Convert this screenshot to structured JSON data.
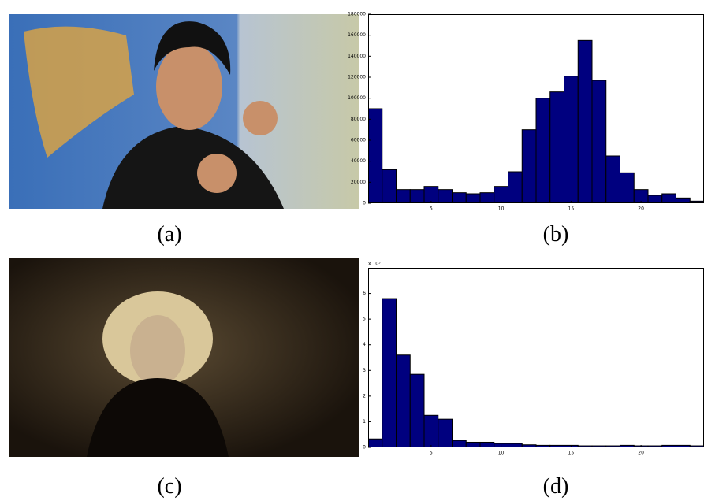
{
  "images": [
    {
      "caption": "(a)"
    },
    {
      "caption": "(c)"
    }
  ],
  "chart_data": [
    {
      "type": "bar",
      "caption": "(b)",
      "x": [
        1,
        2,
        3,
        4,
        5,
        6,
        7,
        8,
        9,
        10,
        11,
        12,
        13,
        14,
        15,
        16,
        17,
        18,
        19,
        20,
        21,
        22,
        23,
        24
      ],
      "values": [
        90000,
        32000,
        13000,
        13000,
        16000,
        13000,
        10000,
        9000,
        10000,
        16000,
        30000,
        70000,
        100000,
        106000,
        121000,
        155000,
        117000,
        45000,
        29000,
        13000,
        7500,
        9000,
        5000,
        2000
      ],
      "color": "#00007f",
      "xlim": [
        0.5,
        24.5
      ],
      "xticks": [
        5,
        10,
        15,
        20
      ],
      "ylim": [
        0,
        180000
      ],
      "yticks": [
        0,
        20000,
        40000,
        60000,
        80000,
        100000,
        120000,
        140000,
        160000,
        180000
      ]
    },
    {
      "type": "bar",
      "caption": "(d)",
      "y_multiplier": "x 10⁵",
      "x": [
        1,
        2,
        3,
        4,
        5,
        6,
        7,
        8,
        9,
        10,
        11,
        12,
        13,
        14,
        15,
        16,
        17,
        18,
        19,
        20,
        21,
        22,
        23,
        24
      ],
      "values": [
        0.33,
        5.8,
        3.6,
        2.85,
        1.25,
        1.1,
        0.27,
        0.2,
        0.2,
        0.15,
        0.15,
        0.1,
        0.08,
        0.08,
        0.08,
        0.06,
        0.06,
        0.06,
        0.08,
        0.06,
        0.06,
        0.08,
        0.08,
        0.06
      ],
      "color": "#00007f",
      "xlim": [
        0.5,
        24.5
      ],
      "xticks": [
        5,
        10,
        15,
        20
      ],
      "ylim": [
        0,
        7
      ],
      "yticks": [
        0,
        1,
        2,
        3,
        4,
        5,
        6
      ]
    }
  ]
}
